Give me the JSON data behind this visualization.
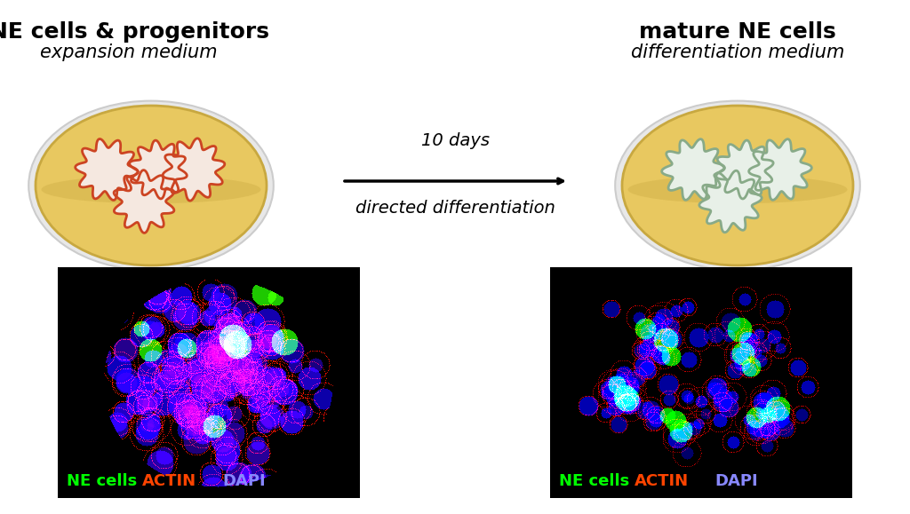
{
  "title_left_line1": "NE cells & progenitors",
  "title_left_line2": "expansion medium",
  "title_right_line1": "mature NE cells",
  "title_right_line2": "differentiation medium",
  "arrow_text_line1": "10 days",
  "arrow_text_line2": "directed differentiation",
  "legend_ne": "NE cells",
  "legend_actin": "ACTIN",
  "legend_dapi": "DAPI",
  "legend_ne_color": "#00ff00",
  "legend_actin_color": "#ff4400",
  "legend_dapi_color": "#8888ff",
  "bg_color": "#ffffff",
  "dish_fill": "#e8c860",
  "dish_rim_color": "#c8a840",
  "dish_outer_color": "#cccccc",
  "dish_outer_fill": "#e8e8e8",
  "organoid_fill_left": "#f5e8e0",
  "organoid_border_left": "#cc4422",
  "organoid_fill_right": "#e8f0e8",
  "organoid_border_right": "#88aa88"
}
